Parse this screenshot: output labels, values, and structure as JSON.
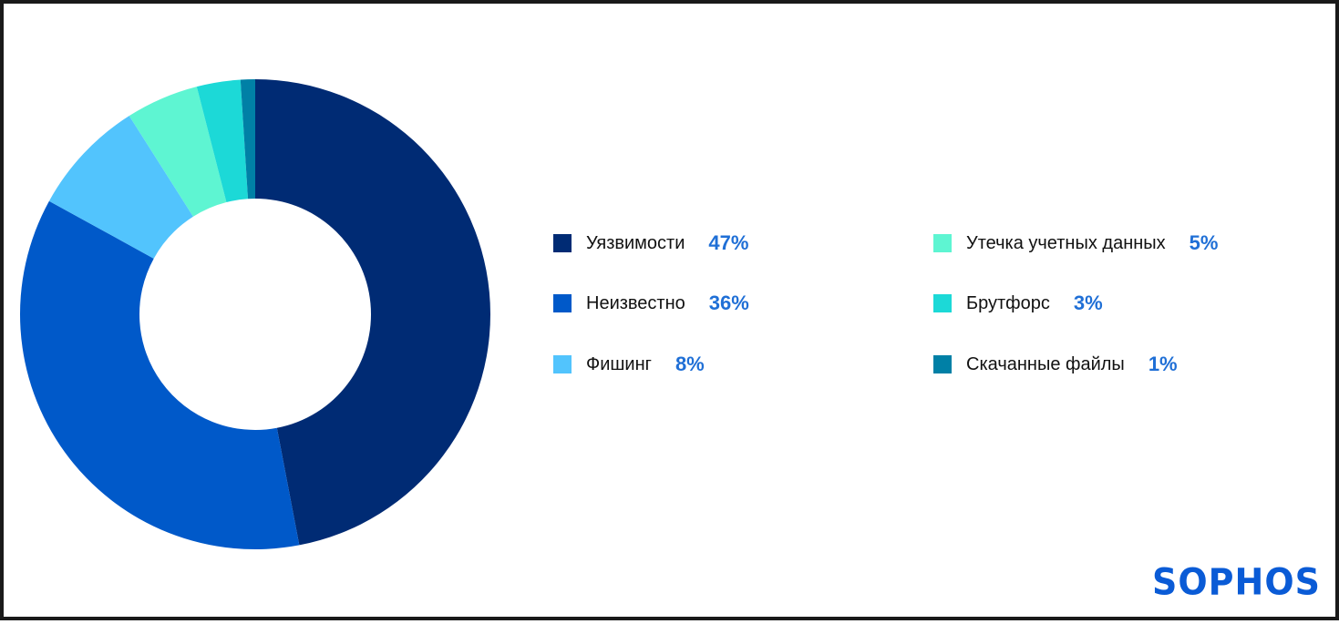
{
  "chart_data": {
    "type": "pie",
    "categories": [
      "Уязвимости",
      "Неизвестно",
      "Фишинг",
      "Утечка учетных данных",
      "Брутфорс",
      "Скачанные файлы"
    ],
    "values": [
      47,
      36,
      8,
      5,
      3,
      1
    ],
    "value_labels": [
      "47%",
      "36%",
      "8%",
      "5%",
      "3%",
      "1%"
    ],
    "colors": [
      "#002b74",
      "#0059c9",
      "#52c4fd",
      "#5ef5d2",
      "#1cd9d7",
      "#0080a6"
    ],
    "legend_placement": "right",
    "donut": true
  },
  "logo": {
    "text": "SOPHOS",
    "color": "#0a5bd6"
  }
}
